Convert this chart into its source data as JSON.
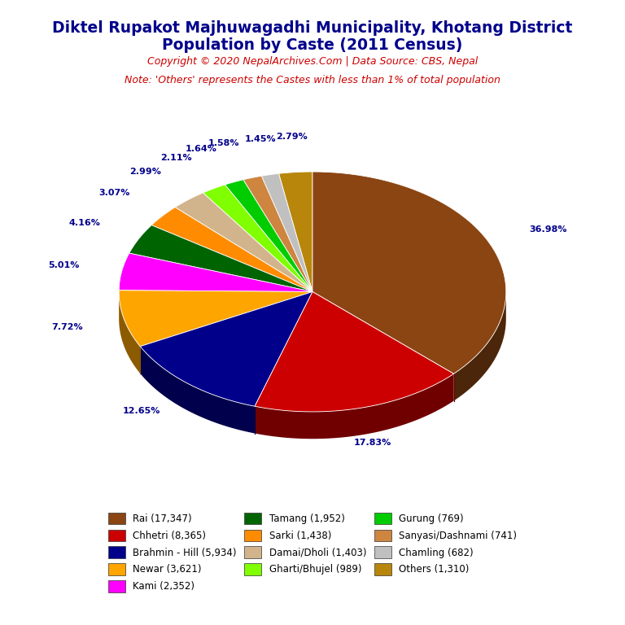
{
  "title_line1": "Diktel Rupakot Majhuwagadhi Municipality, Khotang District",
  "title_line2": "Population by Caste (2011 Census)",
  "copyright": "Copyright © 2020 NepalArchives.Com | Data Source: CBS, Nepal",
  "note": "Note: 'Others' represents the Castes with less than 1% of total population",
  "slices": [
    {
      "label": "Rai",
      "value": 17347,
      "pct": 36.98,
      "color": "#8B4513"
    },
    {
      "label": "Chhetri",
      "value": 8365,
      "pct": 17.83,
      "color": "#CC0000"
    },
    {
      "label": "Brahmin - Hill",
      "value": 5934,
      "pct": 12.65,
      "color": "#00008B"
    },
    {
      "label": "Newar",
      "value": 3621,
      "pct": 7.72,
      "color": "#FFA500"
    },
    {
      "label": "Kami",
      "value": 2352,
      "pct": 5.01,
      "color": "#FF00FF"
    },
    {
      "label": "Tamang",
      "value": 1952,
      "pct": 4.16,
      "color": "#006400"
    },
    {
      "label": "Sarki",
      "value": 1438,
      "pct": 3.07,
      "color": "#FF8C00"
    },
    {
      "label": "Damai/Dholi",
      "value": 1403,
      "pct": 2.99,
      "color": "#D2B48C"
    },
    {
      "label": "Gharti/Bhujel",
      "value": 989,
      "pct": 2.11,
      "color": "#7FFF00"
    },
    {
      "label": "Gurung",
      "value": 769,
      "pct": 1.64,
      "color": "#00CC00"
    },
    {
      "label": "Sanyasi/Dashnami",
      "value": 741,
      "pct": 1.58,
      "color": "#CD853F"
    },
    {
      "label": "Chamling",
      "value": 682,
      "pct": 1.45,
      "color": "#C0C0C0"
    },
    {
      "label": "Others",
      "value": 1310,
      "pct": 2.79,
      "color": "#B8860B"
    }
  ],
  "legend_order": [
    {
      "label": "Rai (17,347)",
      "color": "#8B4513"
    },
    {
      "label": "Chhetri (8,365)",
      "color": "#CC0000"
    },
    {
      "label": "Brahmin - Hill (5,934)",
      "color": "#00008B"
    },
    {
      "label": "Newar (3,621)",
      "color": "#FFA500"
    },
    {
      "label": "Kami (2,352)",
      "color": "#FF00FF"
    },
    {
      "label": "Tamang (1,952)",
      "color": "#006400"
    },
    {
      "label": "Sarki (1,438)",
      "color": "#FF8C00"
    },
    {
      "label": "Damai/Dholi (1,403)",
      "color": "#D2B48C"
    },
    {
      "label": "Gharti/Bhujel (989)",
      "color": "#7FFF00"
    },
    {
      "label": "Gurung (769)",
      "color": "#00CC00"
    },
    {
      "label": "Sanyasi/Dashnami (741)",
      "color": "#CD853F"
    },
    {
      "label": "Chamling (682)",
      "color": "#C0C0C0"
    },
    {
      "label": "Others (1,310)",
      "color": "#B8860B"
    }
  ],
  "title_color": "#00008B",
  "copyright_color": "#CC0000",
  "note_color": "#CC0000",
  "label_color": "#00008B",
  "background_color": "#FFFFFF",
  "ecx": 0.0,
  "ecy": 0.05,
  "erx": 1.0,
  "ery": 0.62,
  "edepth": 0.14,
  "start_angle": 90.0
}
